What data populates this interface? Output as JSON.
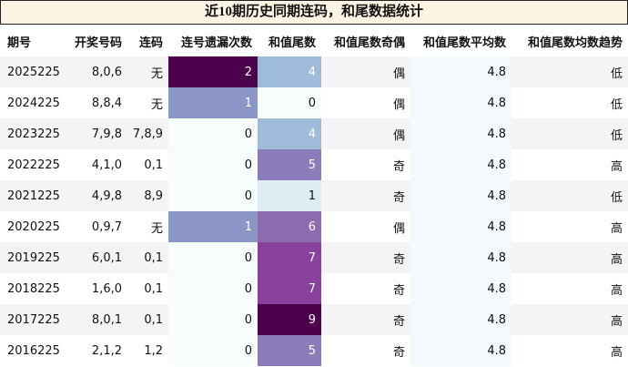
{
  "title": "近10期历史同期连码，和尾数据统计",
  "columns": [
    "期号",
    "开奖号码",
    "连码",
    "连号遗漏次数",
    "和值尾数",
    "和值尾数奇偶",
    "和值尾数平均数",
    "和值尾数均数趋势"
  ],
  "rows": [
    {
      "period": "2025225",
      "numbers": "8,0,6",
      "lianma": "无",
      "missCount": "2",
      "tail": "4",
      "parity": "偶",
      "avg": "4.8",
      "trend": "低"
    },
    {
      "period": "2024225",
      "numbers": "8,8,4",
      "lianma": "无",
      "missCount": "1",
      "tail": "0",
      "parity": "偶",
      "avg": "4.8",
      "trend": "低"
    },
    {
      "period": "2023225",
      "numbers": "7,9,8",
      "lianma": "7,8,9",
      "missCount": "0",
      "tail": "4",
      "parity": "偶",
      "avg": "4.8",
      "trend": "低"
    },
    {
      "period": "2022225",
      "numbers": "4,1,0",
      "lianma": "0,1",
      "missCount": "0",
      "tail": "5",
      "parity": "奇",
      "avg": "4.8",
      "trend": "高"
    },
    {
      "period": "2021225",
      "numbers": "4,9,8",
      "lianma": "8,9",
      "missCount": "0",
      "tail": "1",
      "parity": "奇",
      "avg": "4.8",
      "trend": "低"
    },
    {
      "period": "2020225",
      "numbers": "0,9,7",
      "lianma": "无",
      "missCount": "1",
      "tail": "6",
      "parity": "偶",
      "avg": "4.8",
      "trend": "高"
    },
    {
      "period": "2019225",
      "numbers": "6,0,1",
      "lianma": "0,1",
      "missCount": "0",
      "tail": "7",
      "parity": "奇",
      "avg": "4.8",
      "trend": "高"
    },
    {
      "period": "2018225",
      "numbers": "1,6,0",
      "lianma": "0,1",
      "missCount": "0",
      "tail": "7",
      "parity": "奇",
      "avg": "4.8",
      "trend": "高"
    },
    {
      "period": "2017225",
      "numbers": "8,0,1",
      "lianma": "0,1",
      "missCount": "0",
      "tail": "9",
      "parity": "奇",
      "avg": "4.8",
      "trend": "高"
    },
    {
      "period": "2016225",
      "numbers": "2,1,2",
      "lianma": "1,2",
      "missCount": "0",
      "tail": "5",
      "parity": "奇",
      "avg": "4.8",
      "trend": "高"
    }
  ],
  "colors": {
    "titleBg": "#fdf3e3",
    "missScale": {
      "0": "#f7fcfd",
      "1": "#8c96c6",
      "2": "#4d004b"
    },
    "tailScale": {
      "0": "#f7fcfd",
      "1": "#e0ecf4",
      "4": "#9ebcda",
      "5": "#8c7dba",
      "6": "#8c6bb1",
      "7": "#88419d",
      "9": "#4d004b"
    }
  }
}
